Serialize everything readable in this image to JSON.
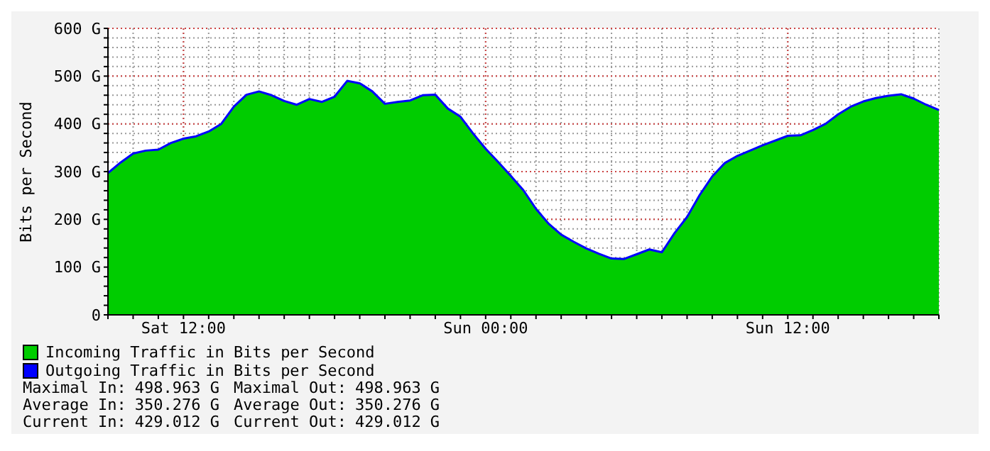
{
  "chart_data": {
    "type": "area",
    "ylabel": "Bits per Second",
    "categories": [
      null,
      null,
      null,
      null,
      null,
      null,
      "Sat 12:00",
      null,
      null,
      null,
      null,
      null,
      null,
      null,
      null,
      null,
      null,
      null,
      null,
      null,
      null,
      null,
      null,
      null,
      null,
      null,
      null,
      null,
      null,
      null,
      "Sun 00:00",
      null,
      null,
      null,
      null,
      null,
      null,
      null,
      null,
      null,
      null,
      null,
      null,
      null,
      null,
      null,
      null,
      null,
      null,
      null,
      null,
      null,
      null,
      null,
      "Sun 12:00",
      null,
      null,
      null,
      null,
      null,
      null,
      null,
      null,
      null,
      null,
      null,
      null
    ],
    "series": [
      {
        "name": "Incoming Traffic in Bits per Second",
        "color": "#00cc00",
        "values": [
          297,
          319,
          338,
          344,
          346,
          360,
          369,
          374,
          384,
          400,
          436,
          461,
          468,
          460,
          448,
          440,
          452,
          446,
          457,
          490,
          485,
          468,
          442,
          446,
          449,
          460,
          461,
          432,
          415,
          380,
          348,
          320,
          291,
          261,
          222,
          191,
          168,
          153,
          139,
          128,
          118,
          117,
          127,
          137,
          131,
          171,
          205,
          251,
          290,
          318,
          333,
          344,
          355,
          365,
          375,
          376,
          387,
          400,
          420,
          436,
          447,
          454,
          459,
          462,
          453,
          440,
          429
        ]
      },
      {
        "name": "Outgoing Traffic in Bits per Second",
        "color": "#0000ff",
        "type": "line",
        "values": [
          297,
          319,
          338,
          344,
          346,
          360,
          369,
          374,
          384,
          400,
          436,
          461,
          468,
          460,
          448,
          440,
          452,
          446,
          457,
          490,
          485,
          468,
          442,
          446,
          449,
          460,
          461,
          432,
          415,
          380,
          348,
          320,
          291,
          261,
          222,
          191,
          168,
          153,
          139,
          128,
          118,
          117,
          127,
          137,
          131,
          171,
          205,
          251,
          290,
          318,
          333,
          344,
          355,
          365,
          375,
          376,
          387,
          400,
          420,
          436,
          447,
          454,
          459,
          462,
          453,
          440,
          429
        ]
      }
    ],
    "ylim": [
      0,
      600
    ],
    "yticks": [
      0,
      {
        "value": 20,
        "label": null
      },
      {
        "value": 40,
        "label": null
      },
      {
        "value": 60,
        "label": null
      },
      {
        "value": 80,
        "label": null
      },
      {
        "value": 100,
        "label": "100 G"
      },
      {
        "value": 120,
        "label": null
      },
      {
        "value": 140,
        "label": null
      },
      {
        "value": 160,
        "label": null
      },
      {
        "value": 180,
        "label": null
      },
      {
        "value": 200,
        "label": "200 G"
      },
      {
        "value": 220,
        "label": null
      },
      {
        "value": 240,
        "label": null
      },
      {
        "value": 260,
        "label": null
      },
      {
        "value": 280,
        "label": null
      },
      {
        "value": 300,
        "label": "300 G"
      },
      {
        "value": 320,
        "label": null
      },
      {
        "value": 340,
        "label": null
      },
      {
        "value": 360,
        "label": null
      },
      {
        "value": 380,
        "label": null
      },
      {
        "value": 400,
        "label": "400 G"
      },
      {
        "value": 420,
        "label": null
      },
      {
        "value": 440,
        "label": null
      },
      {
        "value": 460,
        "label": null
      },
      {
        "value": 480,
        "label": null
      },
      {
        "value": 500,
        "label": "500 G"
      },
      {
        "value": 520,
        "label": null
      },
      {
        "value": 540,
        "label": null
      },
      {
        "value": 560,
        "label": null
      },
      {
        "value": 580,
        "label": null
      },
      {
        "value": 600,
        "label": "600 G"
      }
    ],
    "grid": true,
    "legend": "bottom",
    "annotations": [
      "Maximal In: 498.963 G",
      "Maximal Out: 498.963 G",
      "Average In: 350.276 G",
      "Average Out: 350.276 G",
      "Current In: 429.012 G",
      "Current Out: 429.012 G"
    ]
  }
}
